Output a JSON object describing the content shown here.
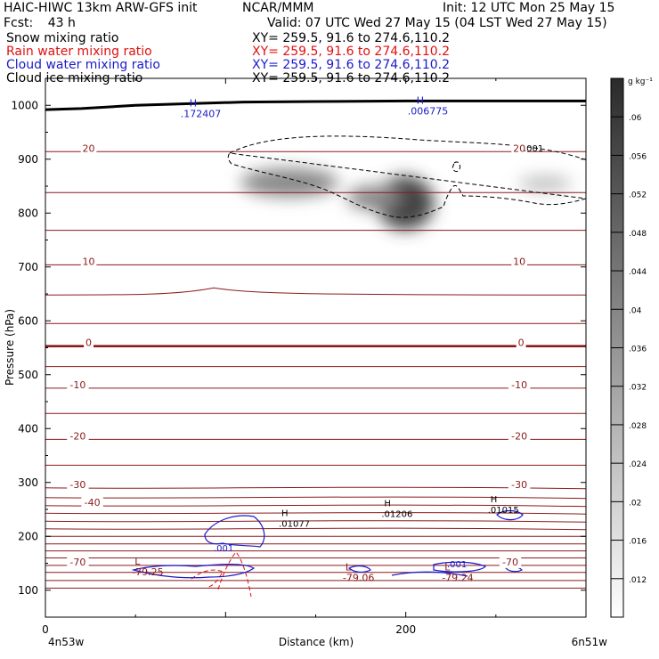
{
  "header": {
    "model": "HAIC-HIWC 13km ARW-GFS init",
    "org": "NCAR/MMM",
    "init": "Init: 12 UTC Mon 25 May 15",
    "fcst_label": "Fcst:",
    "fcst_value": "43 h",
    "valid": "Valid: 07 UTC Wed 27 May 15 (04 LST Wed 27 May 15)",
    "fields": [
      {
        "name": "Snow mixing ratio",
        "xy": "XY= 259.5, 91.6 to 274.6,110.2",
        "color": "#000000"
      },
      {
        "name": "Rain water mixing ratio",
        "xy": "XY= 259.5, 91.6 to 274.6,110.2",
        "color": "#e01010"
      },
      {
        "name": "Cloud water mixing ratio",
        "xy": "XY= 259.5, 91.6 to 274.6,110.2",
        "color": "#1a1acc"
      },
      {
        "name": "Cloud ice mixing ratio",
        "xy": "XY= 259.5, 91.6 to 274.6,110.2",
        "color": "#000000"
      }
    ]
  },
  "chart_data": {
    "type": "cross-section",
    "xlabel": "Distance (km)",
    "ylabel": "Pressure (hPa)",
    "xlim": [
      0,
      300
    ],
    "ylim": [
      1050,
      50
    ],
    "x_ticks": [
      0,
      200
    ],
    "y_ticks": [
      100,
      200,
      300,
      400,
      500,
      600,
      700,
      800,
      900,
      1000
    ],
    "x_endpoint_labels": [
      "4n53w",
      "6n51w"
    ],
    "colorbar": {
      "unit": "g kg⁻¹",
      "ticks": [
        ".012",
        ".016",
        ".02",
        ".024",
        ".028",
        ".032",
        ".036",
        ".04",
        ".044",
        ".048",
        ".052",
        ".056",
        ".06"
      ],
      "range": [
        0.008,
        0.064
      ]
    },
    "temperature_contours": {
      "color": "#8b1a1a",
      "labels": [
        {
          "text": "-70",
          "x": 18,
          "p": 146
        },
        {
          "text": "-70",
          "x": 258,
          "p": 146
        },
        {
          "text": "-40",
          "x": 26,
          "p": 257
        },
        {
          "text": "-30",
          "x": 18,
          "p": 290
        },
        {
          "text": "-30",
          "x": 263,
          "p": 290
        },
        {
          "text": "-20",
          "x": 18,
          "p": 380
        },
        {
          "text": "-20",
          "x": 263,
          "p": 380
        },
        {
          "text": "-10",
          "x": 18,
          "p": 475
        },
        {
          "text": "-10",
          "x": 263,
          "p": 475
        },
        {
          "text": "0",
          "x": 24,
          "p": 553
        },
        {
          "text": "0",
          "x": 264,
          "p": 553
        },
        {
          "text": "10",
          "x": 24,
          "p": 704
        },
        {
          "text": "10",
          "x": 263,
          "p": 704
        },
        {
          "text": "20",
          "x": 24,
          "p": 914
        },
        {
          "text": "20",
          "x": 263,
          "p": 914
        }
      ]
    },
    "snow_maxima": [
      {
        "label": "H",
        "value": ".01077",
        "x": 131,
        "p": 218
      },
      {
        "label": "H",
        "value": ".01206",
        "x": 188,
        "p": 236
      },
      {
        "label": "H",
        "value": ".01015",
        "x": 247,
        "p": 243
      }
    ],
    "temperature_minima": [
      {
        "label": "L",
        "value": "-79.25",
        "x": 51,
        "p": 128
      },
      {
        "label": "L",
        "value": "-79.06",
        "x": 168,
        "p": 117
      },
      {
        "label": "L",
        "value": "-79.24",
        "x": 223,
        "p": 117
      }
    ],
    "cloud_ice_contour_label": ".001",
    "cloud_water_maxima": [
      {
        "label": "H",
        "value": ".172407",
        "x": 77,
        "p": 978
      },
      {
        "label": "H",
        "value": ".006775",
        "x": 203,
        "p": 983
      }
    ],
    "cloud_water_labels": [
      ".001",
      ".001"
    ],
    "surface_pressure": [
      {
        "x": 0,
        "p": 992
      },
      {
        "x": 20,
        "p": 994
      },
      {
        "x": 50,
        "p": 1000
      },
      {
        "x": 80,
        "p": 1003
      },
      {
        "x": 110,
        "p": 1006
      },
      {
        "x": 150,
        "p": 1007
      },
      {
        "x": 200,
        "p": 1008
      },
      {
        "x": 250,
        "p": 1008
      },
      {
        "x": 300,
        "p": 1008
      }
    ]
  }
}
